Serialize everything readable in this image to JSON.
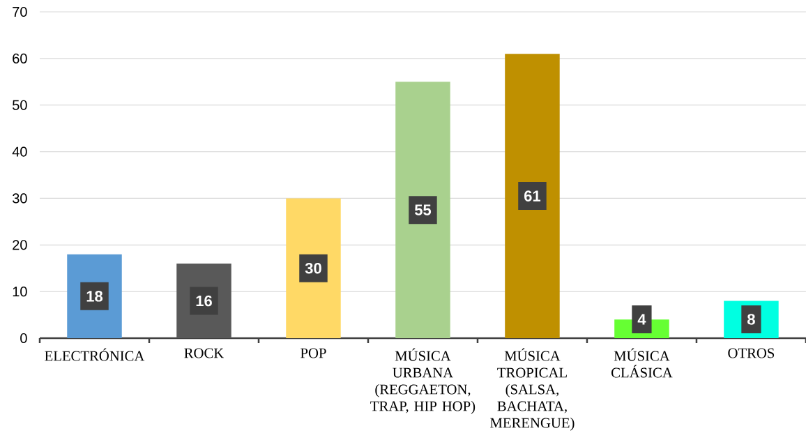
{
  "chart_data": {
    "type": "bar",
    "categories": [
      "ELECTRÓNICA",
      "ROCK",
      "POP",
      "MÚSICA URBANA (REGGAETON, TRAP, HIP HOP)",
      "MÚSICA TROPICAL (SALSA, BACHATA, MERENGUE)",
      "MÚSICA CLÁSICA",
      "OTROS"
    ],
    "values": [
      18,
      16,
      30,
      55,
      61,
      4,
      8
    ],
    "colors": [
      "#5b9bd5",
      "#595959",
      "#ffd966",
      "#a9d18e",
      "#bf9000",
      "#66ff33",
      "#00ffe1"
    ],
    "ylim": [
      0,
      70
    ],
    "yticks": [
      0,
      10,
      20,
      30,
      40,
      50,
      60,
      70
    ],
    "grid": "y",
    "data_labels": true
  }
}
